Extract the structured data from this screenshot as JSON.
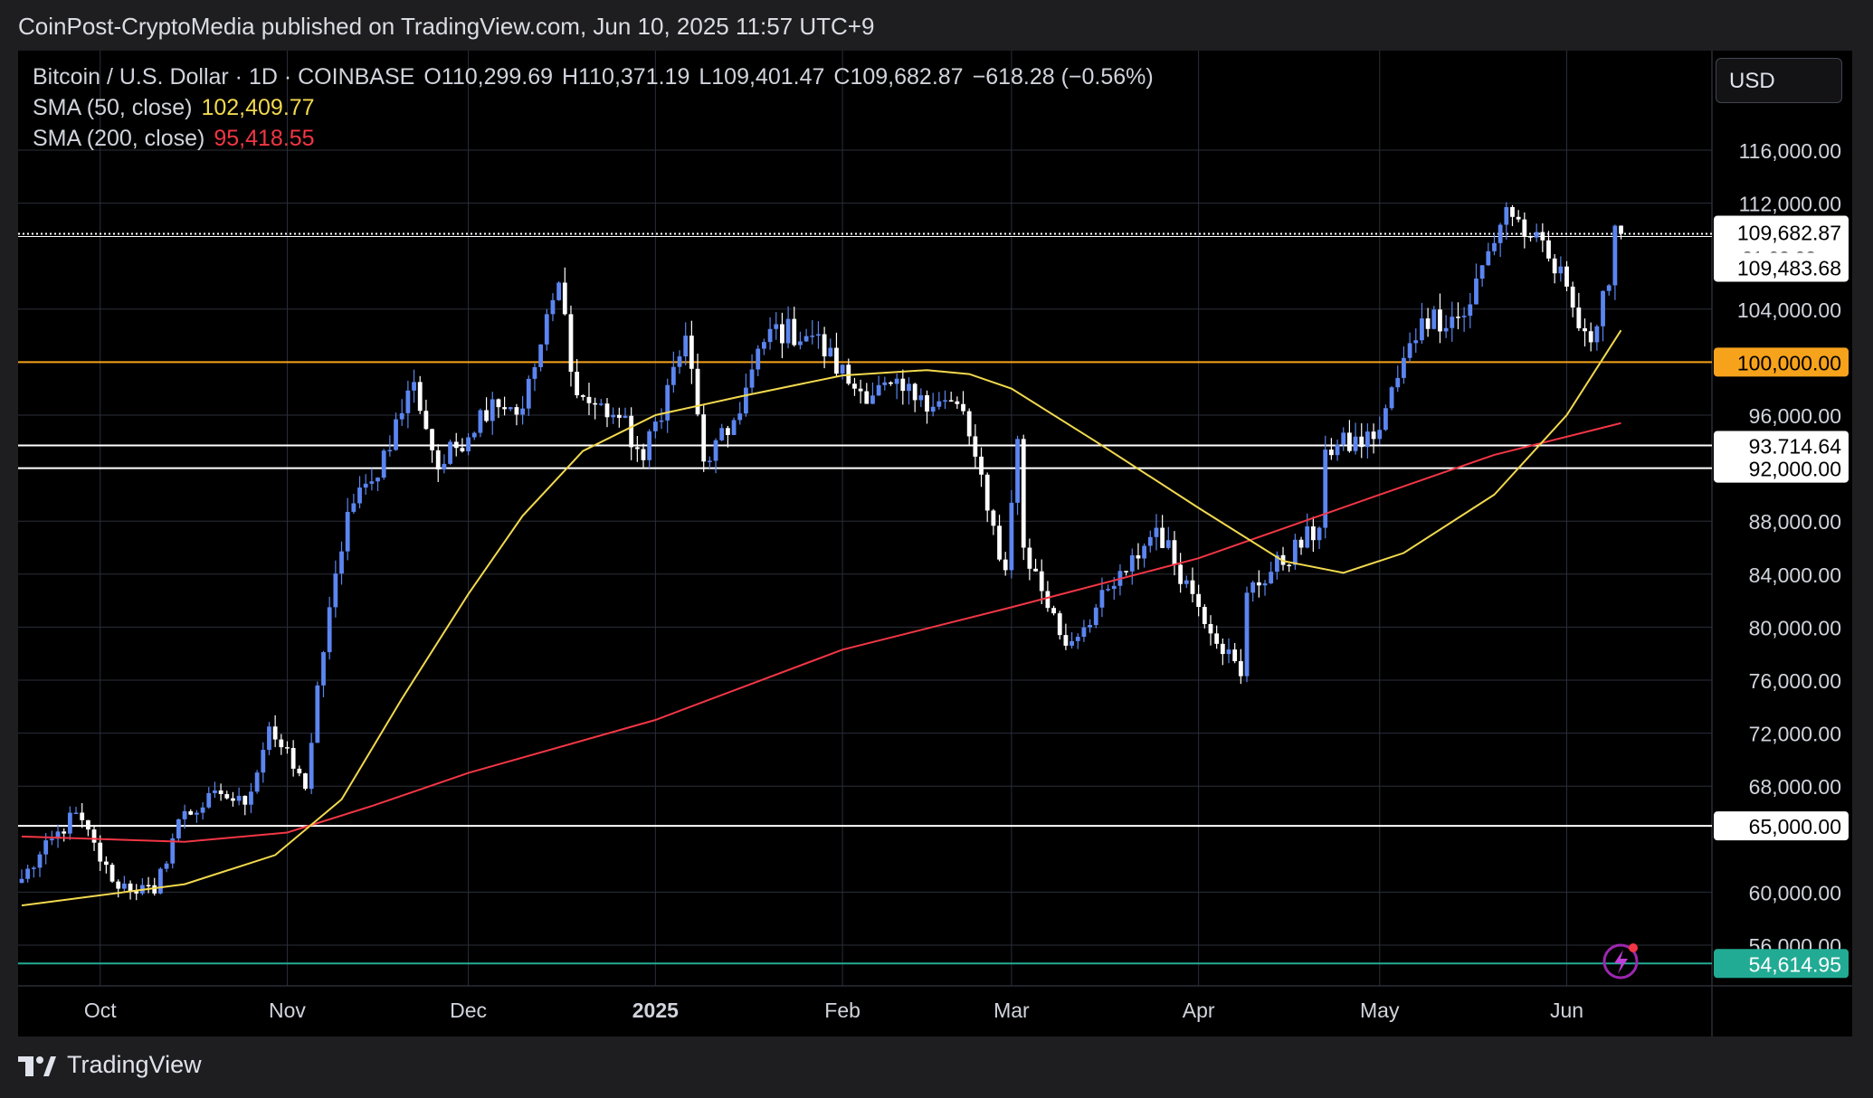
{
  "header": {
    "attribution": "CoinPost-CryptoMedia published on TradingView.com, Jun 10, 2025 11:57 UTC+9"
  },
  "legend": {
    "symbol": "Bitcoin / U.S. Dollar · 1D · COINBASE",
    "open": "O110,299.69",
    "high": "H110,371.19",
    "low": "L109,401.47",
    "close": "C109,682.87",
    "change": "−618.28 (−0.56%)",
    "sma50_label": "SMA (50, close)",
    "sma50_value": "102,409.77",
    "sma200_label": "SMA (200, close)",
    "sma200_value": "95,418.55"
  },
  "currency": "USD",
  "footer": {
    "brand": "TradingView"
  },
  "colors": {
    "up": "#5b85f0",
    "down": "#ffffff",
    "sma50": "#f2d94e",
    "sma200": "#f23645",
    "support_orange": "#f7a21b",
    "teal": "#22ab94",
    "grid": "#2a2e39",
    "background": "#000000"
  },
  "chart_data": {
    "type": "candlestick",
    "ylim": [
      54000,
      120000
    ],
    "y_ticks": [
      "116,000.00",
      "112,000.00",
      "104,000.00",
      "96,000.00",
      "88,000.00",
      "84,000.00",
      "80,000.00",
      "76,000.00",
      "72,000.00",
      "68,000.00",
      "60,000.00",
      "56,000.00"
    ],
    "y_tick_values": [
      116000,
      112000,
      104000,
      96000,
      88000,
      84000,
      80000,
      76000,
      72000,
      68000,
      60000,
      56000
    ],
    "x_ticks": [
      {
        "label": "Oct",
        "date": "2024-10-01",
        "bold": false
      },
      {
        "label": "Nov",
        "date": "2024-11-01",
        "bold": false
      },
      {
        "label": "Dec",
        "date": "2024-12-01",
        "bold": false
      },
      {
        "label": "2025",
        "date": "2025-01-01",
        "bold": true
      },
      {
        "label": "Feb",
        "date": "2025-02-01",
        "bold": false
      },
      {
        "label": "Mar",
        "date": "2025-03-01",
        "bold": false
      },
      {
        "label": "Apr",
        "date": "2025-04-01",
        "bold": false
      },
      {
        "label": "May",
        "date": "2025-05-01",
        "bold": false
      },
      {
        "label": "Jun",
        "date": "2025-06-01",
        "bold": false
      }
    ],
    "x_range": [
      "2024-09-18",
      "2025-06-30"
    ],
    "horizontal_lines": [
      {
        "value": 100000,
        "label": "100,000.00",
        "color": "#f7a21b"
      },
      {
        "value": 93714.64,
        "label": "93,714.64",
        "color": "#ffffff"
      },
      {
        "value": 92000,
        "label": "92,000.00",
        "color": "#ffffff"
      },
      {
        "value": 65000,
        "label": "65,000.00",
        "color": "#ffffff"
      },
      {
        "value": 54614.95,
        "label": "54,614.95",
        "color": "#22ab94"
      }
    ],
    "price_line": {
      "value": 109682.87,
      "label": "109,682.87",
      "countdown": "21:02:03"
    },
    "level_line": {
      "value": 109483.68,
      "label": "109,483.68"
    },
    "anchors": [
      {
        "d": "2024-09-18",
        "c": 61000
      },
      {
        "d": "2024-09-27",
        "c": 66000
      },
      {
        "d": "2024-10-03",
        "c": 60800
      },
      {
        "d": "2024-10-10",
        "c": 59900
      },
      {
        "d": "2024-10-14",
        "c": 65500
      },
      {
        "d": "2024-10-21",
        "c": 67400
      },
      {
        "d": "2024-10-25",
        "c": 66600
      },
      {
        "d": "2024-10-29",
        "c": 72500
      },
      {
        "d": "2024-11-04",
        "c": 67800
      },
      {
        "d": "2024-11-06",
        "c": 75600
      },
      {
        "d": "2024-11-11",
        "c": 88700
      },
      {
        "d": "2024-11-15",
        "c": 91000
      },
      {
        "d": "2024-11-22",
        "c": 98500
      },
      {
        "d": "2024-11-26",
        "c": 91900
      },
      {
        "d": "2024-12-05",
        "c": 97200
      },
      {
        "d": "2024-12-10",
        "c": 96500
      },
      {
        "d": "2024-12-16",
        "c": 106000
      },
      {
        "d": "2024-12-19",
        "c": 97500
      },
      {
        "d": "2024-12-26",
        "c": 95800
      },
      {
        "d": "2024-12-30",
        "c": 92600
      },
      {
        "d": "2025-01-06",
        "c": 102000
      },
      {
        "d": "2025-01-09",
        "c": 92500
      },
      {
        "d": "2025-01-13",
        "c": 94500
      },
      {
        "d": "2025-01-20",
        "c": 102500
      },
      {
        "d": "2025-01-27",
        "c": 102000
      },
      {
        "d": "2025-02-03",
        "c": 98000
      },
      {
        "d": "2025-02-14",
        "c": 97500
      },
      {
        "d": "2025-02-21",
        "c": 96300
      },
      {
        "d": "2025-02-25",
        "c": 88800
      },
      {
        "d": "2025-02-28",
        "c": 84300
      },
      {
        "d": "2025-03-02",
        "c": 94200
      },
      {
        "d": "2025-03-03",
        "c": 86000
      },
      {
        "d": "2025-03-10",
        "c": 78600
      },
      {
        "d": "2025-03-20",
        "c": 84200
      },
      {
        "d": "2025-03-25",
        "c": 87500
      },
      {
        "d": "2025-03-31",
        "c": 82500
      },
      {
        "d": "2025-04-08",
        "c": 76300
      },
      {
        "d": "2025-04-09",
        "c": 82600
      },
      {
        "d": "2025-04-21",
        "c": 87500
      },
      {
        "d": "2025-04-22",
        "c": 93400
      },
      {
        "d": "2025-04-30",
        "c": 94200
      },
      {
        "d": "2025-05-08",
        "c": 103300
      },
      {
        "d": "2025-05-15",
        "c": 103500
      },
      {
        "d": "2025-05-22",
        "c": 111700
      },
      {
        "d": "2025-05-26",
        "c": 109400
      },
      {
        "d": "2025-06-01",
        "c": 105700
      },
      {
        "d": "2025-06-05",
        "c": 101500
      },
      {
        "d": "2025-06-08",
        "c": 105800
      },
      {
        "d": "2025-06-09",
        "c": 110300
      },
      {
        "d": "2025-06-10",
        "c": 109683
      }
    ],
    "sma50": [
      {
        "d": "2024-09-18",
        "v": 59000
      },
      {
        "d": "2024-09-30",
        "v": 59700
      },
      {
        "d": "2024-10-15",
        "v": 60600
      },
      {
        "d": "2024-10-30",
        "v": 62800
      },
      {
        "d": "2024-11-10",
        "v": 67000
      },
      {
        "d": "2024-11-20",
        "v": 74600
      },
      {
        "d": "2024-12-01",
        "v": 82500
      },
      {
        "d": "2024-12-10",
        "v": 88400
      },
      {
        "d": "2024-12-20",
        "v": 93300
      },
      {
        "d": "2025-01-01",
        "v": 96000
      },
      {
        "d": "2025-01-15",
        "v": 97400
      },
      {
        "d": "2025-02-01",
        "v": 99000
      },
      {
        "d": "2025-02-15",
        "v": 99400
      },
      {
        "d": "2025-02-22",
        "v": 99100
      },
      {
        "d": "2025-03-01",
        "v": 98000
      },
      {
        "d": "2025-03-15",
        "v": 94000
      },
      {
        "d": "2025-04-01",
        "v": 89000
      },
      {
        "d": "2025-04-15",
        "v": 85000
      },
      {
        "d": "2025-04-25",
        "v": 84100
      },
      {
        "d": "2025-05-05",
        "v": 85600
      },
      {
        "d": "2025-05-20",
        "v": 90000
      },
      {
        "d": "2025-06-01",
        "v": 96000
      },
      {
        "d": "2025-06-10",
        "v": 102400
      }
    ],
    "sma200": [
      {
        "d": "2024-09-18",
        "v": 64200
      },
      {
        "d": "2024-10-15",
        "v": 63800
      },
      {
        "d": "2024-11-01",
        "v": 64500
      },
      {
        "d": "2024-11-15",
        "v": 66500
      },
      {
        "d": "2024-12-01",
        "v": 69000
      },
      {
        "d": "2025-01-01",
        "v": 73000
      },
      {
        "d": "2025-02-01",
        "v": 78300
      },
      {
        "d": "2025-03-01",
        "v": 81500
      },
      {
        "d": "2025-04-01",
        "v": 85200
      },
      {
        "d": "2025-05-01",
        "v": 90000
      },
      {
        "d": "2025-05-20",
        "v": 93000
      },
      {
        "d": "2025-06-10",
        "v": 95400
      }
    ]
  }
}
